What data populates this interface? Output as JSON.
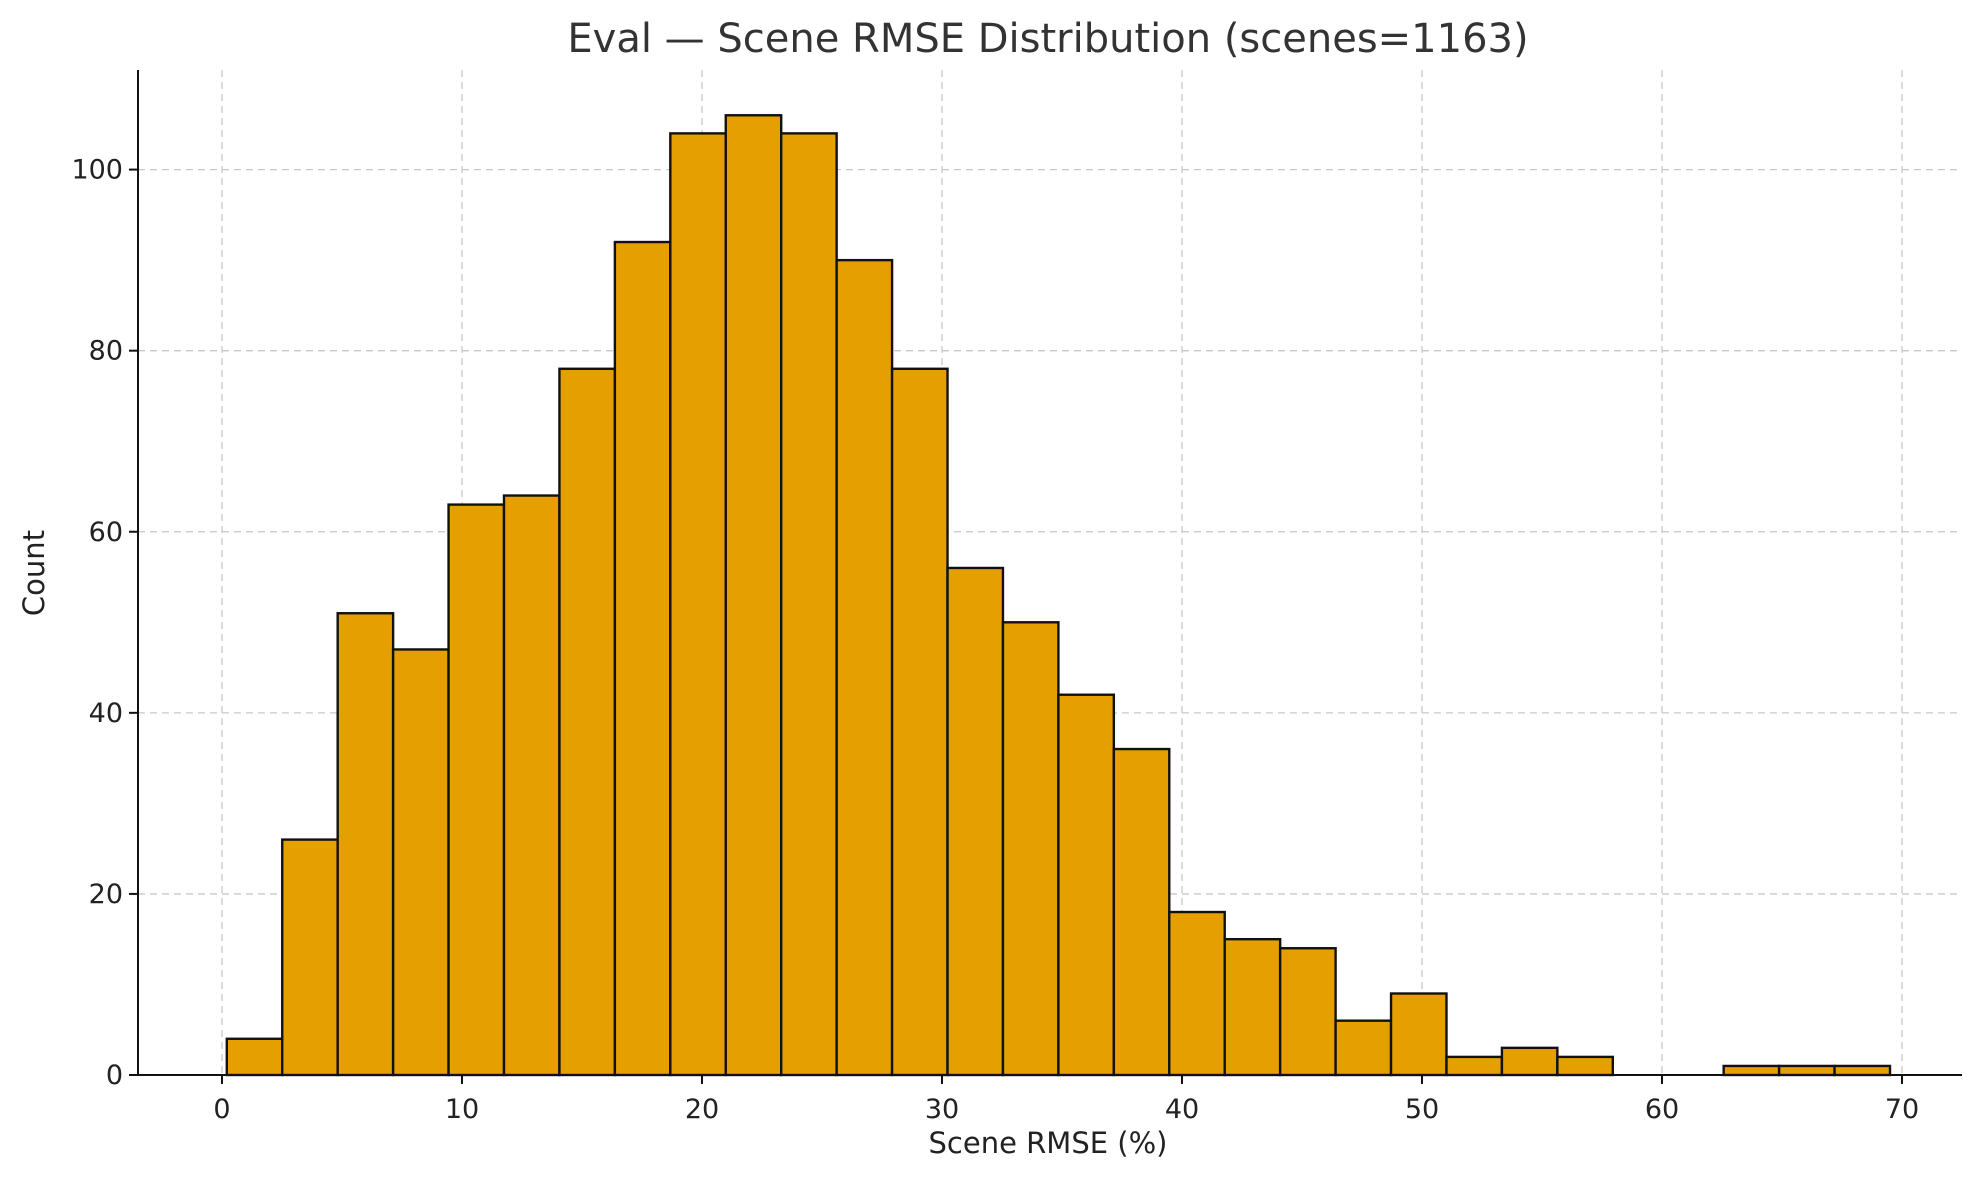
{
  "chart_data": {
    "type": "bar",
    "title": "Eval — Scene RMSE Distribution (scenes=1163)",
    "xlabel": "Scene RMSE (%)",
    "ylabel": "Count",
    "bar_color": "#e5a000",
    "edge_color": "#111111",
    "grid": true,
    "xlim": [
      -3.5,
      72.5
    ],
    "ylim": [
      0,
      111
    ],
    "x_ticks": [
      0,
      10,
      20,
      30,
      40,
      50,
      60,
      70
    ],
    "y_ticks": [
      0,
      20,
      40,
      60,
      80,
      100
    ],
    "bin_start": 0.2,
    "bin_width": 2.31,
    "counts": [
      4,
      26,
      51,
      47,
      63,
      64,
      78,
      92,
      104,
      106,
      104,
      90,
      78,
      56,
      50,
      42,
      36,
      18,
      15,
      14,
      6,
      9,
      2,
      3,
      2,
      0,
      0,
      1,
      1,
      1
    ]
  }
}
